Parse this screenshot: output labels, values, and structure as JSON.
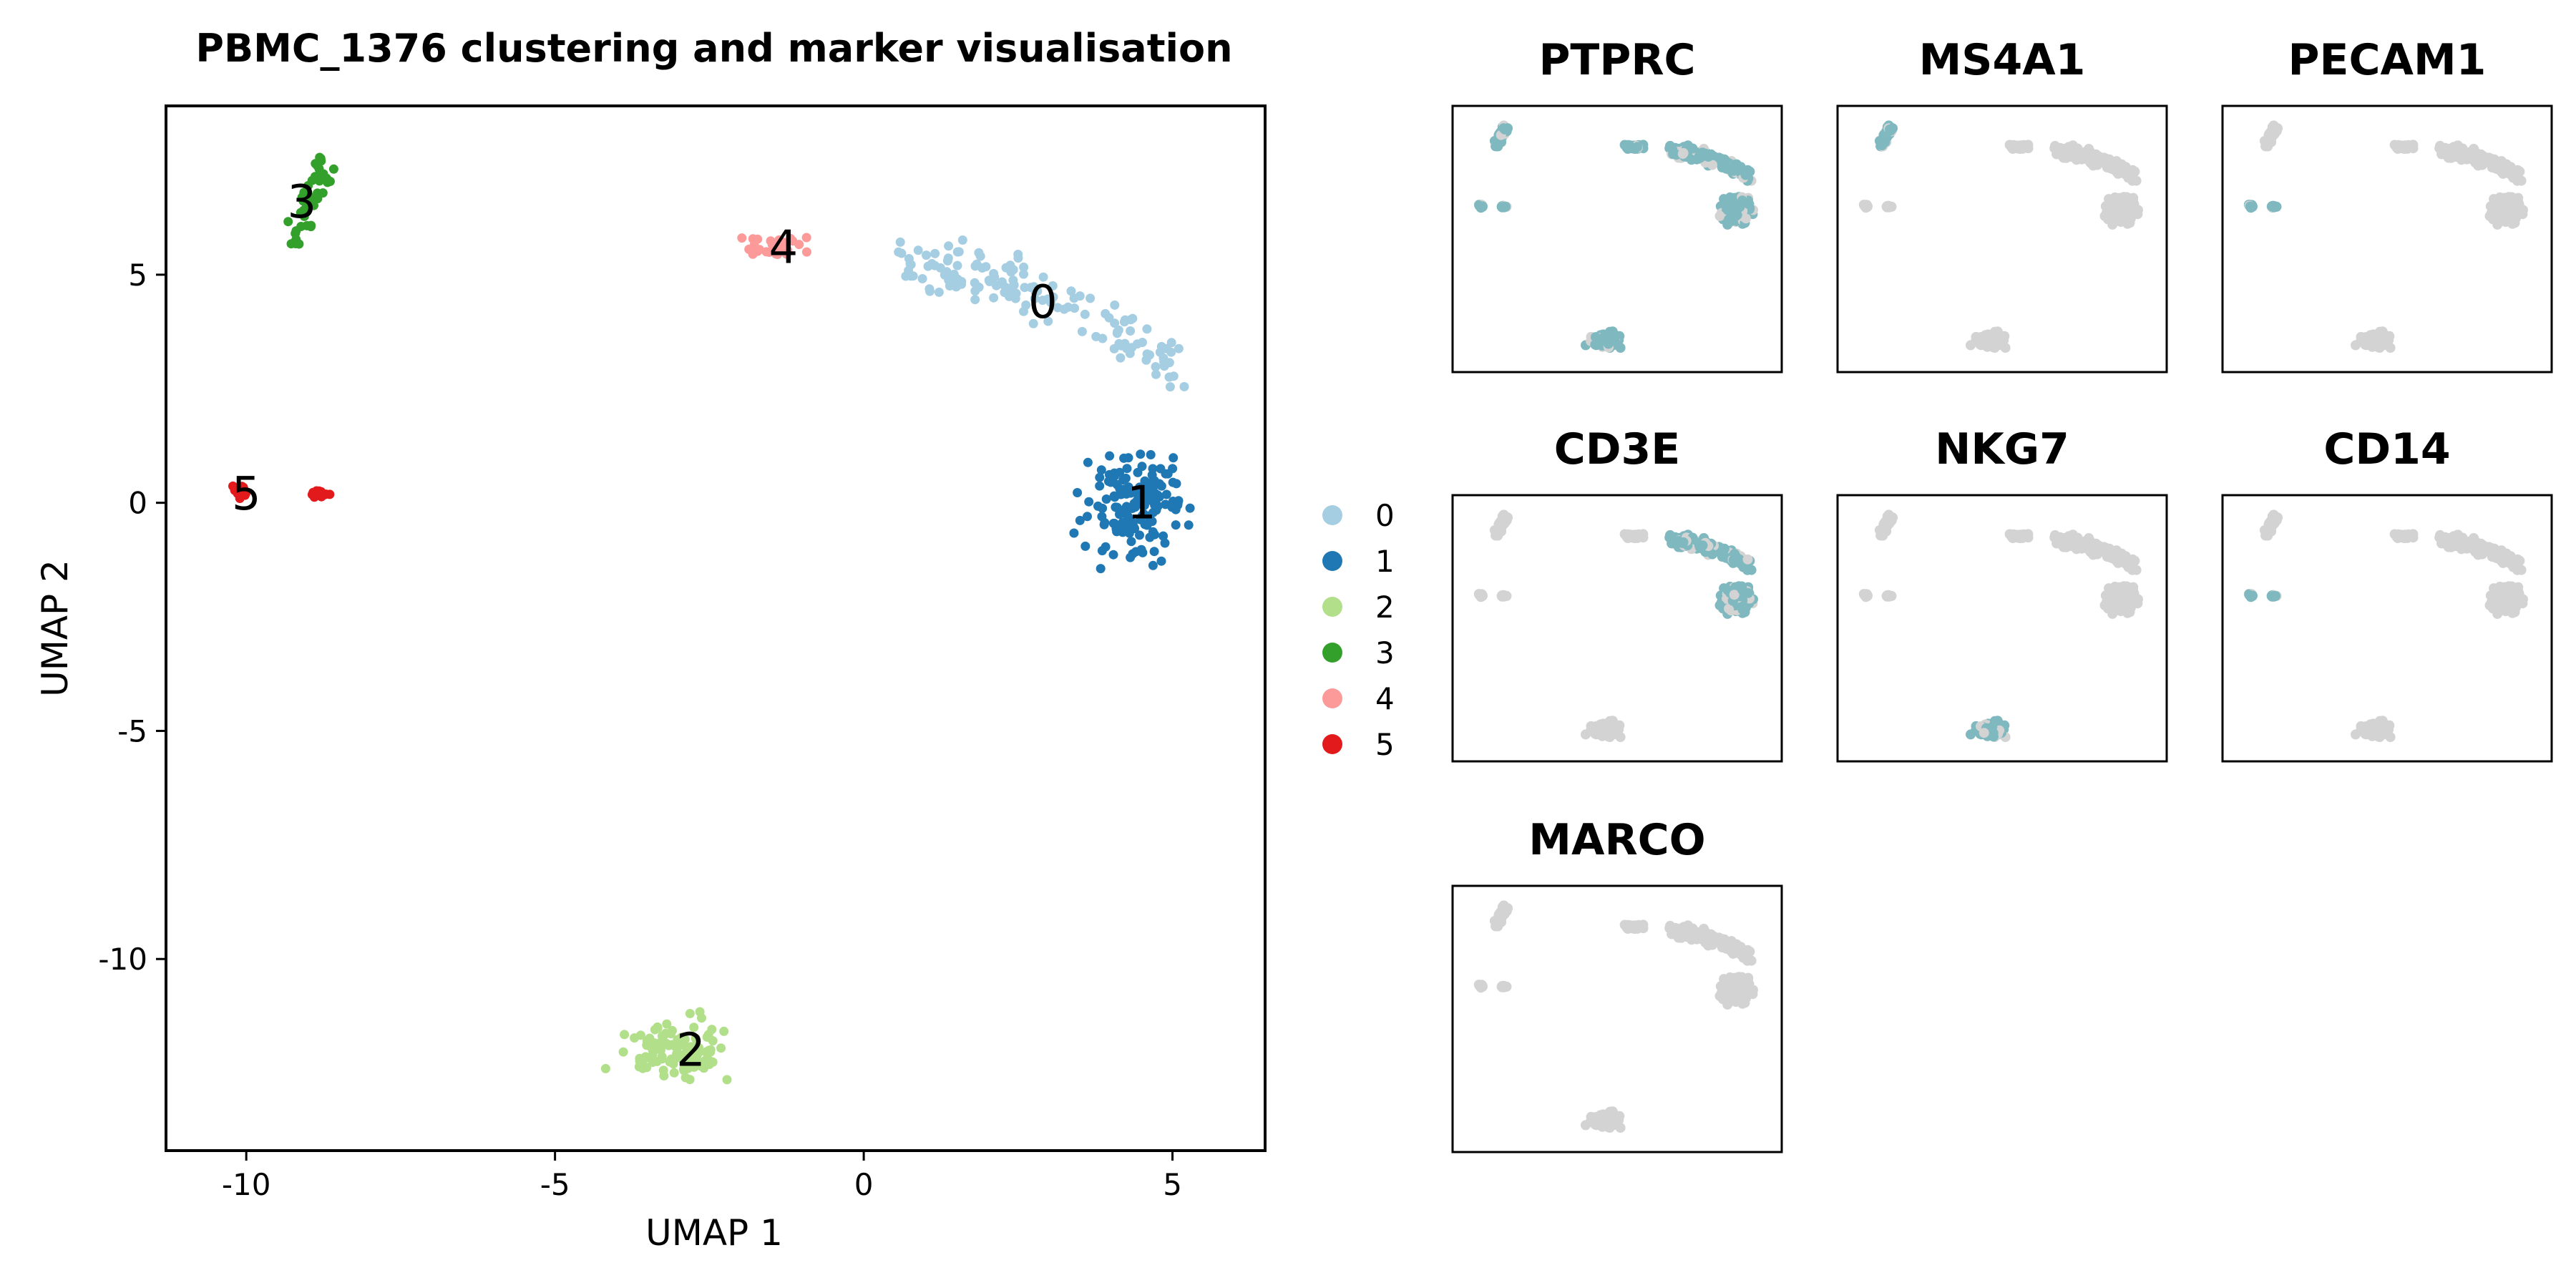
{
  "chart_data": [
    {
      "type": "scatter",
      "title": "PBMC_1376 clustering and marker visualisation",
      "xlabel": "UMAP 1",
      "ylabel": "UMAP 2",
      "xlim": [
        -11.3,
        6.5
      ],
      "ylim": [
        -14.2,
        8.7
      ],
      "xticks": [
        -10,
        -5,
        0,
        5
      ],
      "xtick_labels": [
        "-10",
        "-5",
        "0",
        "5"
      ],
      "yticks": [
        5,
        0,
        -5,
        -10
      ],
      "ytick_labels": [
        "5",
        "0",
        "-5",
        "-10"
      ],
      "grid": false,
      "legend": {
        "placement": "right",
        "entries": [
          "0",
          "1",
          "2",
          "3",
          "4",
          "5"
        ]
      },
      "clusters": [
        {
          "label": "0",
          "color": "#a6cee3",
          "center": [
            2.8,
            4.4
          ],
          "label_pos": [
            2.9,
            4.4
          ]
        },
        {
          "label": "1",
          "color": "#1f78b4",
          "center": [
            4.4,
            -0.1
          ],
          "label_pos": [
            4.5,
            0.0
          ]
        },
        {
          "label": "2",
          "color": "#b2df8a",
          "center": [
            -3.0,
            -12.0
          ],
          "label_pos": [
            -2.8,
            -12.0
          ]
        },
        {
          "label": "3",
          "color": "#33a02c",
          "center": [
            -9.1,
            6.6
          ],
          "label_pos": [
            -9.1,
            6.6
          ]
        },
        {
          "label": "4",
          "color": "#fb9a99",
          "center": [
            -1.4,
            5.6
          ],
          "label_pos": [
            -1.3,
            5.6
          ]
        },
        {
          "label": "5",
          "color": "#e31a1c",
          "center": [
            -9.6,
            0.2
          ],
          "label_pos": [
            -10.0,
            0.2
          ]
        }
      ]
    },
    {
      "type": "scatter",
      "subtype": "feature-plot-grid",
      "low_color": "#d3d3d3",
      "high_color": "#7fb9bf",
      "panels": [
        {
          "title": "PTPRC",
          "expressed_clusters": [
            "0",
            "1",
            "2",
            "3",
            "4",
            "5"
          ]
        },
        {
          "title": "MS4A1",
          "expressed_clusters": [
            "3"
          ]
        },
        {
          "title": "PECAM1",
          "expressed_clusters": [
            "5"
          ]
        },
        {
          "title": "CD3E",
          "expressed_clusters": [
            "0",
            "1"
          ]
        },
        {
          "title": "NKG7",
          "expressed_clusters": [
            "2"
          ]
        },
        {
          "title": "CD14",
          "expressed_clusters": [
            "5"
          ]
        },
        {
          "title": "MARCO",
          "expressed_clusters": []
        }
      ]
    }
  ]
}
